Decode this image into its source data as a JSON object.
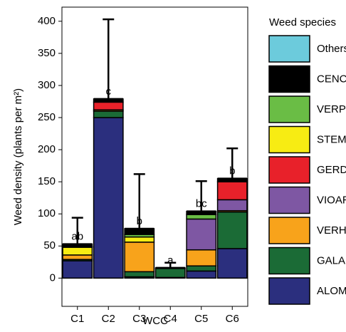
{
  "chart_data": {
    "type": "stacked-bar",
    "y_label": "Weed density (plants per m²)",
    "x_label": "WCC",
    "legend_title": "Weed species",
    "categories": [
      "C1",
      "C2",
      "C3",
      "C4",
      "C5",
      "C6"
    ],
    "series": [
      {
        "name": "ALOMY",
        "color": "#2b2f7e",
        "values": [
          27,
          250,
          2,
          1,
          11,
          46
        ]
      },
      {
        "name": "GALAP",
        "color": "#1b6b36",
        "values": [
          2,
          10,
          8,
          14,
          8,
          57
        ]
      },
      {
        "name": "VERHE",
        "color": "#f8a31b",
        "values": [
          7,
          2,
          46,
          0,
          25,
          2
        ]
      },
      {
        "name": "VIOAR",
        "color": "#7e57a3",
        "values": [
          0,
          0,
          0,
          0,
          48,
          17
        ]
      },
      {
        "name": "GERDI",
        "color": "#e8212a",
        "values": [
          0,
          12,
          0,
          0,
          0,
          28
        ]
      },
      {
        "name": "STEME",
        "color": "#f7ec13",
        "values": [
          12,
          0,
          8,
          0,
          0,
          0
        ]
      },
      {
        "name": "VERPE",
        "color": "#6abd45",
        "values": [
          1,
          0,
          4,
          0,
          7,
          0
        ]
      },
      {
        "name": "CENCY",
        "color": "#000000",
        "values": [
          4,
          5,
          9,
          1,
          5,
          5
        ]
      },
      {
        "name": "Others",
        "color": "#6ccbdc",
        "values": [
          0,
          0,
          0,
          0,
          0,
          0
        ]
      }
    ],
    "error_upper": [
      41,
      124,
      85,
      8,
      47,
      47
    ],
    "annotations": [
      "ab",
      "c",
      "b",
      "a",
      "bc",
      "b"
    ],
    "ylim": [
      -44,
      422
    ],
    "yticks": [
      0,
      50,
      100,
      150,
      200,
      250,
      300,
      350,
      400
    ]
  }
}
